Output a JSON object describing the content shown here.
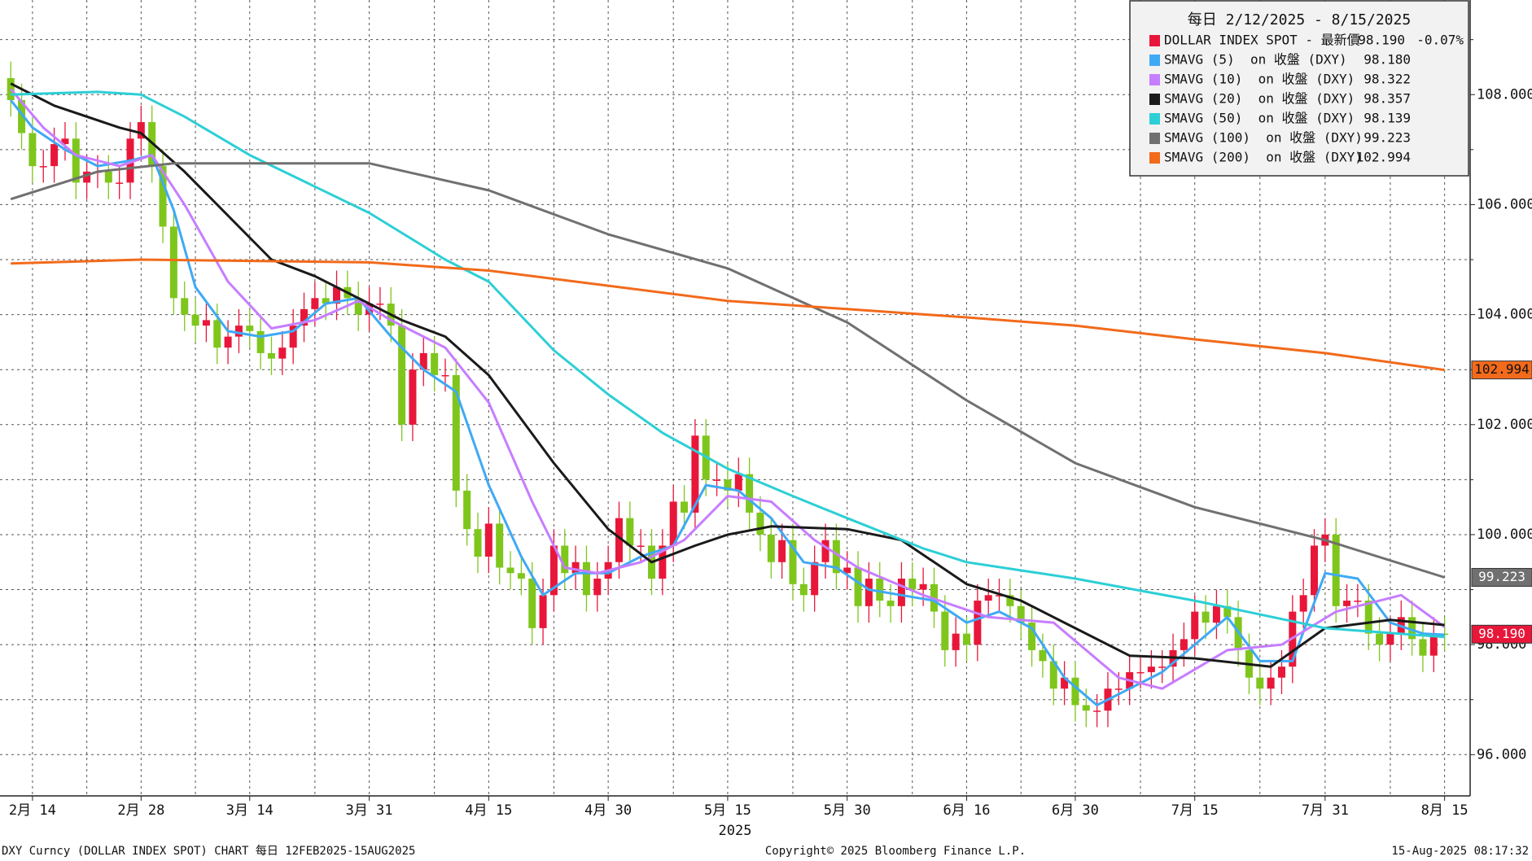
{
  "chart_data": {
    "type": "candlestick",
    "title": "每日 2/12/2025 - 8/15/2025",
    "candles": {
      "name": "DOLLAR INDEX SPOT - 最新價",
      "legend_value": "98.190",
      "legend_change": "-0.07%",
      "tag": "98.190",
      "legend_color": "#e8173a",
      "up_color": "#e8173a",
      "down_color": "#7fc61c",
      "x": [
        0,
        1,
        2,
        3,
        4,
        5,
        6,
        7,
        8,
        9,
        10,
        11,
        12,
        13,
        14,
        15,
        16,
        17,
        18,
        19,
        20,
        21,
        22,
        23,
        24,
        25,
        26,
        27,
        28,
        29,
        30,
        31,
        32,
        33,
        34,
        35,
        36,
        37,
        38,
        39,
        40,
        41,
        42,
        43,
        44,
        45,
        46,
        47,
        48,
        49,
        50,
        51,
        52,
        53,
        54,
        55,
        56,
        57,
        58,
        59,
        60,
        61,
        62,
        63,
        64,
        65,
        66,
        67,
        68,
        69,
        70,
        71,
        72,
        73,
        74,
        75,
        76,
        77,
        78,
        79,
        80,
        81,
        82,
        83,
        84,
        85,
        86,
        87,
        88,
        89,
        90,
        91,
        92,
        93,
        94,
        95,
        96,
        97,
        98,
        99,
        100,
        101,
        102,
        103,
        104,
        105,
        106,
        107,
        108,
        109,
        110,
        111,
        112,
        113,
        114,
        115,
        116,
        117,
        118,
        119,
        120,
        121,
        122,
        123,
        124,
        125,
        126,
        127,
        128,
        129,
        130,
        131,
        132
      ],
      "open": [
        108.3,
        107.9,
        107.3,
        106.7,
        106.7,
        107.1,
        107.2,
        106.4,
        106.6,
        106.6,
        106.4,
        106.4,
        107.2,
        107.5,
        106.7,
        105.6,
        104.3,
        104.0,
        103.8,
        103.9,
        103.4,
        103.6,
        103.8,
        103.7,
        103.3,
        103.2,
        103.4,
        103.8,
        104.1,
        104.3,
        104.2,
        104.5,
        104.3,
        104.0,
        104.2,
        104.2,
        103.8,
        102.0,
        103.0,
        103.3,
        102.9,
        102.9,
        100.8,
        100.1,
        99.6,
        100.2,
        99.4,
        99.3,
        99.2,
        98.3,
        98.9,
        99.8,
        99.3,
        99.5,
        98.9,
        99.2,
        99.5,
        100.3,
        99.8,
        99.8,
        99.2,
        99.8,
        100.6,
        100.4,
        101.8,
        101.0,
        101.0,
        100.8,
        101.1,
        100.4,
        100.0,
        99.5,
        99.9,
        99.1,
        98.9,
        99.5,
        99.9,
        99.3,
        99.4,
        98.7,
        99.2,
        98.8,
        98.7,
        99.2,
        99.0,
        99.1,
        98.6,
        97.9,
        98.2,
        98.0,
        98.8,
        98.9,
        98.9,
        98.7,
        98.4,
        97.9,
        97.7,
        97.2,
        97.4,
        96.9,
        96.8,
        96.8,
        97.2,
        97.2,
        97.5,
        97.5,
        97.6,
        97.6,
        97.9,
        98.1,
        98.6,
        98.4,
        98.7,
        98.5,
        97.9,
        97.4,
        97.2,
        97.4,
        97.6,
        98.6,
        98.9,
        99.8,
        100.0,
        98.7,
        98.8,
        98.8,
        98.2,
        98.0,
        98.2,
        98.5,
        98.1,
        97.8,
        98.2
      ],
      "high": [
        108.6,
        108.2,
        107.6,
        107.0,
        107.4,
        107.5,
        107.5,
        106.9,
        106.9,
        106.9,
        106.7,
        107.5,
        107.8,
        107.8,
        107.0,
        105.9,
        104.6,
        104.3,
        104.2,
        104.2,
        103.9,
        104.1,
        104.1,
        104.0,
        103.6,
        103.7,
        104.1,
        104.4,
        104.6,
        104.6,
        104.8,
        104.8,
        104.6,
        104.5,
        104.5,
        104.5,
        104.1,
        103.3,
        103.6,
        103.6,
        103.2,
        103.2,
        101.1,
        100.4,
        100.5,
        100.5,
        99.7,
        99.6,
        99.5,
        99.2,
        100.1,
        100.1,
        99.8,
        99.8,
        99.5,
        99.8,
        100.6,
        100.6,
        100.1,
        100.1,
        100.1,
        100.9,
        100.9,
        102.1,
        102.1,
        101.3,
        101.3,
        101.4,
        101.4,
        100.7,
        100.3,
        100.2,
        100.2,
        99.4,
        99.8,
        100.2,
        100.2,
        99.7,
        99.7,
        99.5,
        99.5,
        99.1,
        99.5,
        99.5,
        99.4,
        99.4,
        98.9,
        98.5,
        98.5,
        99.1,
        99.2,
        99.2,
        99.2,
        99.0,
        98.7,
        98.2,
        98.0,
        97.7,
        97.7,
        97.2,
        97.1,
        97.5,
        97.5,
        97.8,
        97.8,
        97.9,
        97.9,
        98.2,
        98.4,
        98.9,
        98.9,
        99.0,
        99.0,
        98.8,
        98.2,
        97.7,
        97.7,
        97.9,
        98.9,
        99.2,
        100.1,
        100.3,
        100.3,
        99.1,
        99.1,
        99.1,
        98.5,
        98.5,
        98.8,
        98.8,
        98.4,
        98.5,
        98.5
      ],
      "low": [
        107.6,
        107.0,
        106.4,
        106.4,
        106.4,
        106.8,
        106.1,
        106.1,
        106.3,
        106.1,
        106.1,
        106.1,
        106.9,
        106.4,
        105.3,
        104.0,
        103.7,
        103.5,
        103.5,
        103.1,
        103.1,
        103.3,
        103.4,
        103.0,
        102.9,
        102.9,
        103.1,
        103.5,
        103.8,
        103.9,
        103.9,
        104.0,
        103.7,
        103.7,
        103.9,
        103.5,
        101.7,
        101.7,
        102.7,
        102.6,
        102.6,
        100.5,
        99.8,
        99.3,
        99.3,
        99.1,
        99.0,
        98.9,
        98.0,
        98.0,
        98.6,
        99.0,
        99.0,
        98.6,
        98.6,
        98.9,
        99.2,
        99.5,
        99.5,
        98.9,
        98.9,
        99.5,
        100.1,
        100.1,
        100.7,
        100.7,
        100.5,
        100.5,
        100.1,
        99.7,
        99.2,
        99.2,
        98.8,
        98.6,
        98.6,
        99.2,
        99.0,
        99.0,
        98.4,
        98.4,
        98.5,
        98.4,
        98.4,
        98.7,
        98.7,
        98.3,
        97.6,
        97.6,
        97.7,
        97.7,
        98.5,
        98.6,
        98.4,
        98.1,
        97.6,
        97.4,
        96.9,
        96.9,
        96.6,
        96.5,
        96.5,
        96.5,
        96.9,
        96.9,
        97.2,
        97.2,
        97.3,
        97.3,
        97.6,
        97.8,
        98.1,
        98.1,
        98.2,
        97.6,
        97.1,
        96.9,
        96.9,
        97.1,
        97.3,
        98.3,
        98.6,
        99.5,
        98.4,
        98.4,
        98.5,
        97.9,
        97.7,
        97.7,
        97.9,
        97.8,
        97.5,
        97.5,
        97.89
      ],
      "close": [
        107.9,
        107.3,
        106.7,
        106.7,
        107.1,
        107.2,
        106.4,
        106.6,
        106.6,
        106.4,
        106.4,
        107.2,
        107.5,
        106.7,
        105.6,
        104.3,
        104.0,
        103.8,
        103.9,
        103.4,
        103.6,
        103.8,
        103.7,
        103.3,
        103.2,
        103.4,
        103.8,
        104.1,
        104.3,
        104.2,
        104.5,
        104.3,
        104.0,
        104.2,
        104.2,
        103.8,
        102.0,
        103.0,
        103.3,
        102.9,
        102.9,
        100.8,
        100.1,
        99.6,
        100.2,
        99.4,
        99.3,
        99.2,
        98.3,
        98.9,
        99.8,
        99.3,
        99.5,
        98.9,
        99.2,
        99.5,
        100.3,
        99.8,
        99.8,
        99.2,
        99.8,
        100.6,
        100.4,
        101.8,
        101.0,
        101.0,
        100.8,
        101.1,
        100.4,
        100.0,
        99.5,
        99.9,
        99.1,
        98.9,
        99.5,
        99.9,
        99.3,
        99.4,
        98.7,
        99.2,
        98.8,
        98.7,
        99.2,
        99.0,
        99.1,
        98.6,
        97.9,
        98.2,
        98.0,
        98.8,
        98.9,
        98.9,
        98.7,
        98.4,
        97.9,
        97.7,
        97.2,
        97.4,
        96.9,
        96.8,
        96.8,
        97.2,
        97.2,
        97.5,
        97.5,
        97.6,
        97.6,
        97.9,
        98.1,
        98.6,
        98.4,
        98.7,
        98.5,
        97.9,
        97.4,
        97.2,
        97.4,
        97.6,
        98.6,
        98.9,
        99.8,
        100.0,
        98.7,
        98.8,
        98.8,
        98.2,
        98.0,
        98.2,
        98.5,
        98.1,
        97.8,
        98.2,
        98.19
      ]
    },
    "series": [
      {
        "name": "SMAVG (5)  on 收盤 (DXY)",
        "legend_value": "98.180",
        "color": "#3fa9f5",
        "x": [
          0,
          2,
          5,
          8,
          11,
          13,
          15,
          17,
          20,
          23,
          26,
          29,
          32,
          35,
          38,
          41,
          44,
          47,
          49,
          52,
          55,
          58,
          61,
          64,
          67,
          70,
          73,
          76,
          79,
          82,
          85,
          88,
          91,
          94,
          97,
          100,
          103,
          106,
          109,
          112,
          115,
          118,
          121,
          124,
          127,
          130,
          132
        ],
        "values": [
          107.9,
          107.4,
          107.0,
          106.7,
          106.8,
          106.9,
          105.9,
          104.5,
          103.7,
          103.6,
          103.7,
          104.2,
          104.3,
          103.6,
          103.0,
          102.6,
          100.9,
          99.6,
          98.9,
          99.3,
          99.3,
          99.6,
          99.8,
          100.9,
          100.8,
          100.3,
          99.5,
          99.4,
          99.0,
          98.9,
          98.8,
          98.4,
          98.6,
          98.3,
          97.4,
          96.9,
          97.2,
          97.5,
          98.0,
          98.5,
          97.7,
          97.7,
          99.3,
          99.2,
          98.4,
          98.2,
          98.18
        ]
      },
      {
        "name": "SMAVG (10)  on 收盤 (DXY)",
        "legend_value": "98.322",
        "color": "#c77dff",
        "x": [
          0,
          3,
          6,
          10,
          13,
          16,
          20,
          24,
          28,
          32,
          35,
          40,
          44,
          48,
          51,
          54,
          58,
          62,
          66,
          70,
          74,
          78,
          84,
          90,
          96,
          102,
          106,
          112,
          117,
          122,
          128,
          132
        ],
        "values": [
          108.1,
          107.4,
          106.9,
          106.7,
          106.9,
          106.0,
          104.6,
          103.75,
          103.9,
          104.25,
          103.9,
          103.4,
          102.4,
          100.6,
          99.4,
          99.3,
          99.5,
          99.9,
          100.7,
          100.6,
          99.9,
          99.4,
          98.9,
          98.5,
          98.4,
          97.4,
          97.2,
          97.9,
          98.0,
          98.6,
          98.9,
          98.322
        ]
      },
      {
        "name": "SMAVG (20)  on 收盤 (DXY)",
        "legend_value": "98.357",
        "color": "#1a1a1a",
        "x": [
          0,
          4,
          10,
          12,
          16,
          22,
          24,
          28,
          33,
          36,
          40,
          44,
          50,
          55,
          59,
          63,
          66,
          70,
          77,
          82,
          88,
          93,
          98,
          103,
          109,
          116,
          121,
          127,
          132
        ],
        "values": [
          108.2,
          107.8,
          107.4,
          107.3,
          106.6,
          105.4,
          105.0,
          104.7,
          104.2,
          103.9,
          103.6,
          102.9,
          101.3,
          100.1,
          99.5,
          99.8,
          100.0,
          100.15,
          100.1,
          99.9,
          99.1,
          98.8,
          98.3,
          97.8,
          97.75,
          97.6,
          98.3,
          98.45,
          98.357
        ]
      },
      {
        "name": "SMAVG (50)  on 收盤 (DXY)",
        "legend_value": "98.139",
        "color": "#2ccfd6",
        "x": [
          0,
          8,
          12,
          16,
          22,
          33,
          40,
          44,
          50,
          55,
          60,
          66,
          72,
          77,
          84,
          88,
          98,
          109,
          121,
          132
        ],
        "values": [
          108.0,
          108.05,
          108.0,
          107.6,
          106.9,
          105.85,
          105.0,
          104.6,
          103.35,
          102.55,
          101.85,
          101.2,
          100.7,
          100.3,
          99.75,
          99.5,
          99.2,
          98.8,
          98.3,
          98.139
        ]
      },
      {
        "name": "SMAVG (100)  on 收盤 (DXY)",
        "legend_value": "99.223",
        "color": "#707070",
        "tag": "99.223",
        "x": [
          0,
          8,
          15,
          22,
          33,
          44,
          55,
          66,
          77,
          88,
          98,
          109,
          121,
          132
        ],
        "values": [
          106.1,
          106.6,
          106.75,
          106.75,
          106.75,
          106.26,
          105.46,
          104.84,
          103.86,
          102.44,
          101.3,
          100.5,
          99.9,
          99.223
        ]
      },
      {
        "name": "SMAVG (200)  on 收盤 (DXY)",
        "legend_value": "102.994",
        "color": "#f26a1b",
        "tag": "102.994",
        "x": [
          0,
          12,
          33,
          44,
          66,
          77,
          88,
          98,
          109,
          121,
          132
        ],
        "values": [
          104.93,
          105.0,
          104.95,
          104.8,
          104.25,
          104.1,
          103.95,
          103.8,
          103.55,
          103.3,
          102.994
        ]
      }
    ],
    "xlim": [
      -0.99,
      134.35
    ],
    "ylim": [
      95.25,
      109.72
    ],
    "xticks": [
      {
        "value": 2,
        "label": "2月 14"
      },
      {
        "value": 12,
        "label": "2月 28"
      },
      {
        "value": 22,
        "label": "3月 14"
      },
      {
        "value": 33,
        "label": "3月 31"
      },
      {
        "value": 44,
        "label": "4月 15"
      },
      {
        "value": 55,
        "label": "4月 30"
      },
      {
        "value": 66,
        "label": "5月 15"
      },
      {
        "value": 77,
        "label": "5月 30"
      },
      {
        "value": 88,
        "label": "6月 16"
      },
      {
        "value": 98,
        "label": "6月 30"
      },
      {
        "value": 109,
        "label": "7月 15"
      },
      {
        "value": 121,
        "label": "7月 31"
      },
      {
        "value": 132,
        "label": "8月 15"
      }
    ],
    "x_minor_grid": [
      7,
      17,
      28,
      39,
      50,
      61,
      72,
      83,
      93,
      104,
      115,
      127
    ],
    "xlabel": "2025",
    "yticks": [
      {
        "value": 96,
        "label": "96.000"
      },
      {
        "value": 98,
        "label": "98.000"
      },
      {
        "value": 100,
        "label": "100.000"
      },
      {
        "value": 102,
        "label": "102.000"
      },
      {
        "value": 104,
        "label": "104.000"
      },
      {
        "value": 106,
        "label": "106.000"
      },
      {
        "value": 108,
        "label": "108.000"
      }
    ],
    "y_minor_grid": [
      97,
      99,
      101,
      103,
      105,
      107,
      109
    ],
    "grid": true,
    "footer": {
      "left": "DXY Curncy (DOLLAR INDEX SPOT) CHART  每日 12FEB2025-15AUG2025",
      "center": "Copyright© 2025 Bloomberg Finance L.P.",
      "right": "15-Aug-2025 08:17:32"
    }
  }
}
